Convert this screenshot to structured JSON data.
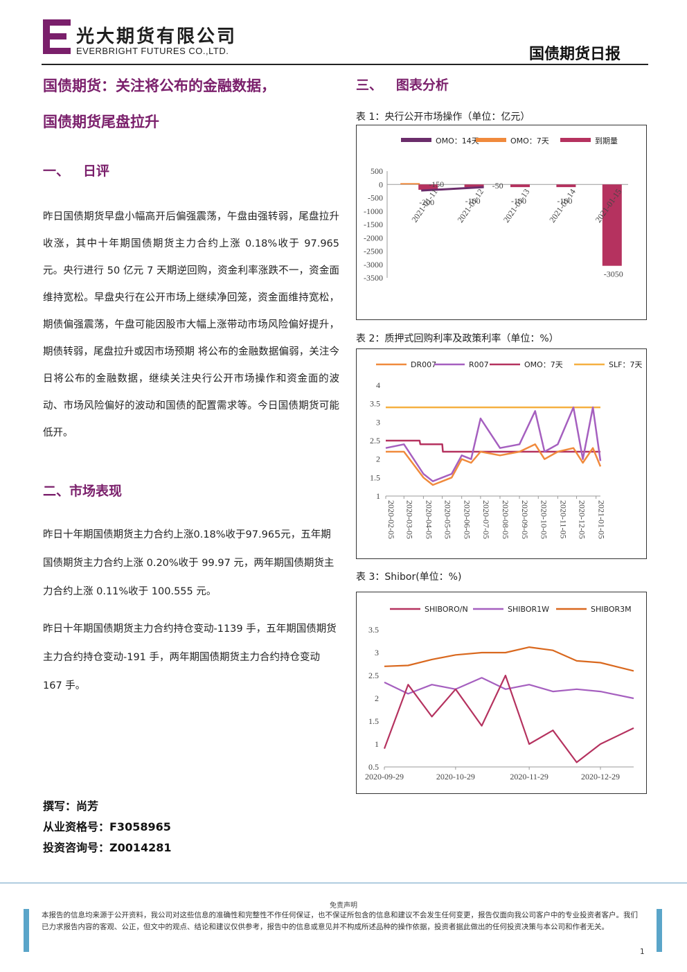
{
  "header": {
    "company_cn": "光大期货有限公司",
    "company_en": "EVERBRIGHT FUTURES CO.,LTD.",
    "report_name": "国债期货日报",
    "brand_color": "#7a1f6b"
  },
  "headline": {
    "line1": "国债期货：关注将公布的金融数据，",
    "line2": "国债期货尾盘拉升"
  },
  "section1": {
    "title": "一、   日评",
    "paragraph": "昨日国债期货早盘小幅高开后偏强震荡，午盘由强转弱，尾盘拉升收涨，其中十年期国债期货主力合约上涨 0.18%收于 97.965 元。央行进行 50 亿元 7 天期逆回购，资金利率涨跌不一，资金面维持宽松。早盘央行在公开市场上继续净回笼，资金面维持宽松，期债偏强震荡，午盘可能因股市大幅上涨带动市场风险偏好提升，期债转弱，尾盘拉升或因市场预期 将公布的金融数据偏弱，关注今日将公布的金融数据，继续关注央行公开市场操作和资金面的波动、市场风险偏好的波动和国债的配置需求等。今日国债期货可能低开。"
  },
  "section2": {
    "title": "二、市场表现",
    "paragraph1": "昨日十年期国债期货主力合约上涨0.18%收于97.965元，五年期国债期货主力合约上涨 0.20%收于 99.97 元，两年期国债期货主力合约上涨 0.11%收于 100.555 元。",
    "paragraph2": "昨日十年期国债期货主力合约持仓变动-1139 手，五年期国债期货主力合约持仓变动-191 手，两年期国债期货主力合约持仓变动 167 手。"
  },
  "section3": {
    "title": "三、   图表分析"
  },
  "author": {
    "writer": "撰写：尚芳",
    "qualification": "从业资格号：F3058965",
    "consulting": "投资咨询号：Z0014281"
  },
  "disclaimer": {
    "title": "免责声明",
    "text": "本报告的信息均来源于公开资料，我公司对这些信息的准确性和完整性不作任何保证，也不保证所包含的信息和建议不会发生任何变更，报告仅面向我公司客户中的专业投资者客户。我们已力求报告内容的客观、公正，但文中的观点、结论和建议仅供参考，报告中的信息或意见并不构成所述品种的操作依据，投资者据此做出的任何投资决策与本公司和作者无关。"
  },
  "page_number": "1",
  "chart_data": [
    {
      "type": "bar",
      "title": "表 1：央行公开市场操作（单位：亿元）",
      "legend": [
        "OMO：14天",
        "OMO：7天",
        "到期量"
      ],
      "legend_colors": [
        "#6b2d6b",
        "#f08a3c",
        "#b5325f"
      ],
      "legend_placement": "top",
      "categories": [
        "2021-01-11",
        "2021-01-12",
        "2021-01-13",
        "2021-01-14",
        "2021-01-15"
      ],
      "series": [
        {
          "name": "OMO：14天",
          "values": [
            0,
            0,
            0,
            0,
            0
          ]
        },
        {
          "name": "OMO：7天",
          "values": [
            50,
            0,
            0,
            0,
            0
          ]
        },
        {
          "name": "到期量",
          "values": [
            -200,
            -100,
            -100,
            -100,
            -3050
          ]
        }
      ],
      "net_line": {
        "values": [
          -150,
          -50
        ]
      },
      "data_labels": [
        "-200",
        "-150",
        "-100",
        "-50",
        "-100",
        "-100",
        "-3050"
      ],
      "y_ticks": [
        "500",
        "0",
        "-500",
        "-1000",
        "-1500",
        "-2000",
        "-2500",
        "-3000",
        "-3500"
      ],
      "ylim": [
        -3500,
        500
      ],
      "grid": false
    },
    {
      "type": "line",
      "title": "表 2：质押式回购利率及政策利率（单位：%）",
      "legend": [
        "DR007",
        "R007",
        "OMO：7天",
        "SLF：7天"
      ],
      "legend_colors": [
        "#f08a3c",
        "#a55fbf",
        "#b5325f",
        "#f5b041"
      ],
      "legend_placement": "top",
      "x_ticks": [
        "2020-02-05",
        "2020-03-05",
        "2020-04-05",
        "2020-05-05",
        "2020-06-05",
        "2020-07-05",
        "2020-08-05",
        "2020-09-05",
        "2020-10-05",
        "2020-11-05",
        "2020-12-05",
        "2021-01-05"
      ],
      "y_ticks": [
        "1",
        "1.5",
        "2",
        "2.5",
        "3",
        "3.5",
        "4"
      ],
      "ylim": [
        1,
        4
      ],
      "series": [
        {
          "name": "SLF：7天",
          "x": [
            "2020-02-05",
            "2021-01-12"
          ],
          "values": [
            3.4,
            3.4
          ]
        },
        {
          "name": "OMO：7天",
          "x": [
            "2020-02-05",
            "2020-03-30",
            "2020-03-31",
            "2020-05-05",
            "2020-05-06",
            "2021-01-12"
          ],
          "values": [
            2.5,
            2.5,
            2.4,
            2.4,
            2.2,
            2.2
          ]
        },
        {
          "name": "R007",
          "x": [
            "2020-02-05",
            "2020-03-05",
            "2020-04-05",
            "2020-04-20",
            "2020-05-05",
            "2020-05-20",
            "2020-06-05",
            "2020-06-20",
            "2020-07-05",
            "2020-08-05",
            "2020-09-05",
            "2020-09-30",
            "2020-10-15",
            "2020-11-05",
            "2020-11-30",
            "2020-12-15",
            "2020-12-31",
            "2021-01-12"
          ],
          "values": [
            2.3,
            2.4,
            1.6,
            1.4,
            1.5,
            1.6,
            2.1,
            2.0,
            3.1,
            2.3,
            2.4,
            3.3,
            2.2,
            2.4,
            3.4,
            2.0,
            3.4,
            1.95
          ]
        },
        {
          "name": "DR007",
          "x": [
            "2020-02-05",
            "2020-03-05",
            "2020-04-05",
            "2020-04-20",
            "2020-05-05",
            "2020-05-20",
            "2020-06-05",
            "2020-06-20",
            "2020-07-05",
            "2020-08-05",
            "2020-09-05",
            "2020-09-30",
            "2020-10-15",
            "2020-11-05",
            "2020-11-30",
            "2020-12-15",
            "2020-12-31",
            "2021-01-12"
          ],
          "values": [
            2.2,
            2.2,
            1.5,
            1.3,
            1.4,
            1.5,
            2.0,
            1.9,
            2.2,
            2.1,
            2.2,
            2.4,
            2.0,
            2.2,
            2.3,
            1.9,
            2.3,
            1.8
          ]
        }
      ],
      "grid": false
    },
    {
      "type": "line",
      "title": "表 3：Shibor(单位：%)",
      "legend": [
        "SHIBORO/N",
        "SHIBOR1W",
        "SHIBOR3M"
      ],
      "legend_colors": [
        "#b5325f",
        "#a55fbf",
        "#d9681e"
      ],
      "legend_placement": "top",
      "x_ticks": [
        "2020-09-29",
        "2020-10-29",
        "2020-11-29",
        "2020-12-29"
      ],
      "y_ticks": [
        "0.5",
        "1",
        "1.5",
        "2",
        "2.5",
        "3",
        "3.5"
      ],
      "ylim": [
        0.5,
        3.5
      ],
      "series": [
        {
          "name": "SHIBOR3M",
          "x": [
            "2020-09-29",
            "2020-10-09",
            "2020-10-19",
            "2020-10-29",
            "2020-11-09",
            "2020-11-19",
            "2020-11-29",
            "2020-12-09",
            "2020-12-19",
            "2020-12-29",
            "2021-01-12"
          ],
          "values": [
            2.7,
            2.72,
            2.85,
            2.95,
            3.0,
            3.0,
            3.12,
            3.05,
            2.82,
            2.78,
            2.6
          ]
        },
        {
          "name": "SHIBOR1W",
          "x": [
            "2020-09-29",
            "2020-10-09",
            "2020-10-19",
            "2020-10-29",
            "2020-11-09",
            "2020-11-19",
            "2020-11-29",
            "2020-12-09",
            "2020-12-19",
            "2020-12-29",
            "2021-01-12"
          ],
          "values": [
            2.35,
            2.1,
            2.3,
            2.2,
            2.45,
            2.2,
            2.3,
            2.15,
            2.2,
            2.15,
            2.0
          ]
        },
        {
          "name": "SHIBORO/N",
          "x": [
            "2020-09-29",
            "2020-10-09",
            "2020-10-19",
            "2020-10-29",
            "2020-11-09",
            "2020-11-19",
            "2020-11-29",
            "2020-12-09",
            "2020-12-19",
            "2020-12-29",
            "2021-01-12"
          ],
          "values": [
            0.9,
            2.3,
            1.6,
            2.2,
            1.4,
            2.5,
            1.0,
            1.3,
            0.6,
            1.0,
            1.35
          ]
        }
      ],
      "grid": false
    }
  ]
}
